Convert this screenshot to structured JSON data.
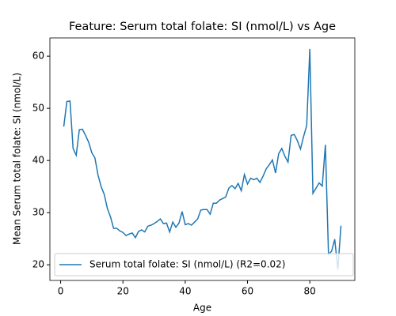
{
  "chart_data": {
    "type": "line",
    "title": "Feature: Serum total folate: SI (nmol/L) vs Age",
    "x_label": "Age",
    "y_label": "Mean Serum total folate: SI (nmol/L)",
    "x": [
      1,
      2,
      3,
      4,
      5,
      6,
      7,
      8,
      9,
      10,
      11,
      12,
      13,
      14,
      15,
      16,
      17,
      18,
      19,
      20,
      21,
      22,
      23,
      24,
      25,
      26,
      27,
      28,
      29,
      30,
      31,
      32,
      33,
      34,
      35,
      36,
      37,
      38,
      39,
      40,
      41,
      42,
      43,
      44,
      45,
      46,
      47,
      48,
      49,
      50,
      51,
      52,
      53,
      54,
      55,
      56,
      57,
      58,
      59,
      60,
      61,
      62,
      63,
      64,
      65,
      66,
      67,
      68,
      69,
      70,
      71,
      72,
      73,
      74,
      75,
      76,
      77,
      78,
      79,
      80,
      81,
      82,
      83,
      84,
      85,
      86,
      87,
      88,
      89,
      90
    ],
    "series": [
      {
        "name": "Serum total folate: SI (nmol/L) (R2=0.02)",
        "color": "#1f77b4",
        "values": [
          46.5,
          51.3,
          51.4,
          42.3,
          41,
          45.9,
          46,
          44.8,
          43.5,
          41.5,
          40.5,
          37.2,
          35,
          33.5,
          30.8,
          29.2,
          27,
          27,
          26.5,
          26.2,
          25.6,
          25.9,
          26.1,
          25.2,
          26.4,
          26.7,
          26.3,
          27.4,
          27.6,
          27.9,
          28.3,
          28.8,
          27.9,
          28,
          26.3,
          28.2,
          27.2,
          28,
          30.2,
          27.7,
          27.9,
          27.6,
          28.2,
          28.8,
          30.5,
          30.6,
          30.6,
          29.7,
          31.8,
          31.8,
          32.4,
          32.7,
          33,
          34.7,
          35.2,
          34.6,
          35.6,
          34.2,
          37.3,
          35.5,
          36.6,
          36.3,
          36.6,
          35.8,
          37,
          38.4,
          39.2,
          40.1,
          37.6,
          41.3,
          42.3,
          40.8,
          39.7,
          44.8,
          45,
          43.8,
          42.2,
          44.6,
          46.7,
          61.4,
          33.7,
          34.7,
          35.7,
          35.1,
          43,
          22,
          22.6,
          24.9,
          19.1,
          27.5
        ]
      }
    ],
    "xlim": [
      -3.45,
      94.45
    ],
    "xticks": [
      0,
      20,
      40,
      60,
      80
    ],
    "ylim": [
      17.0,
      63.5
    ],
    "yticks": [
      20,
      30,
      40,
      50,
      60
    ],
    "legend": "lower left"
  }
}
